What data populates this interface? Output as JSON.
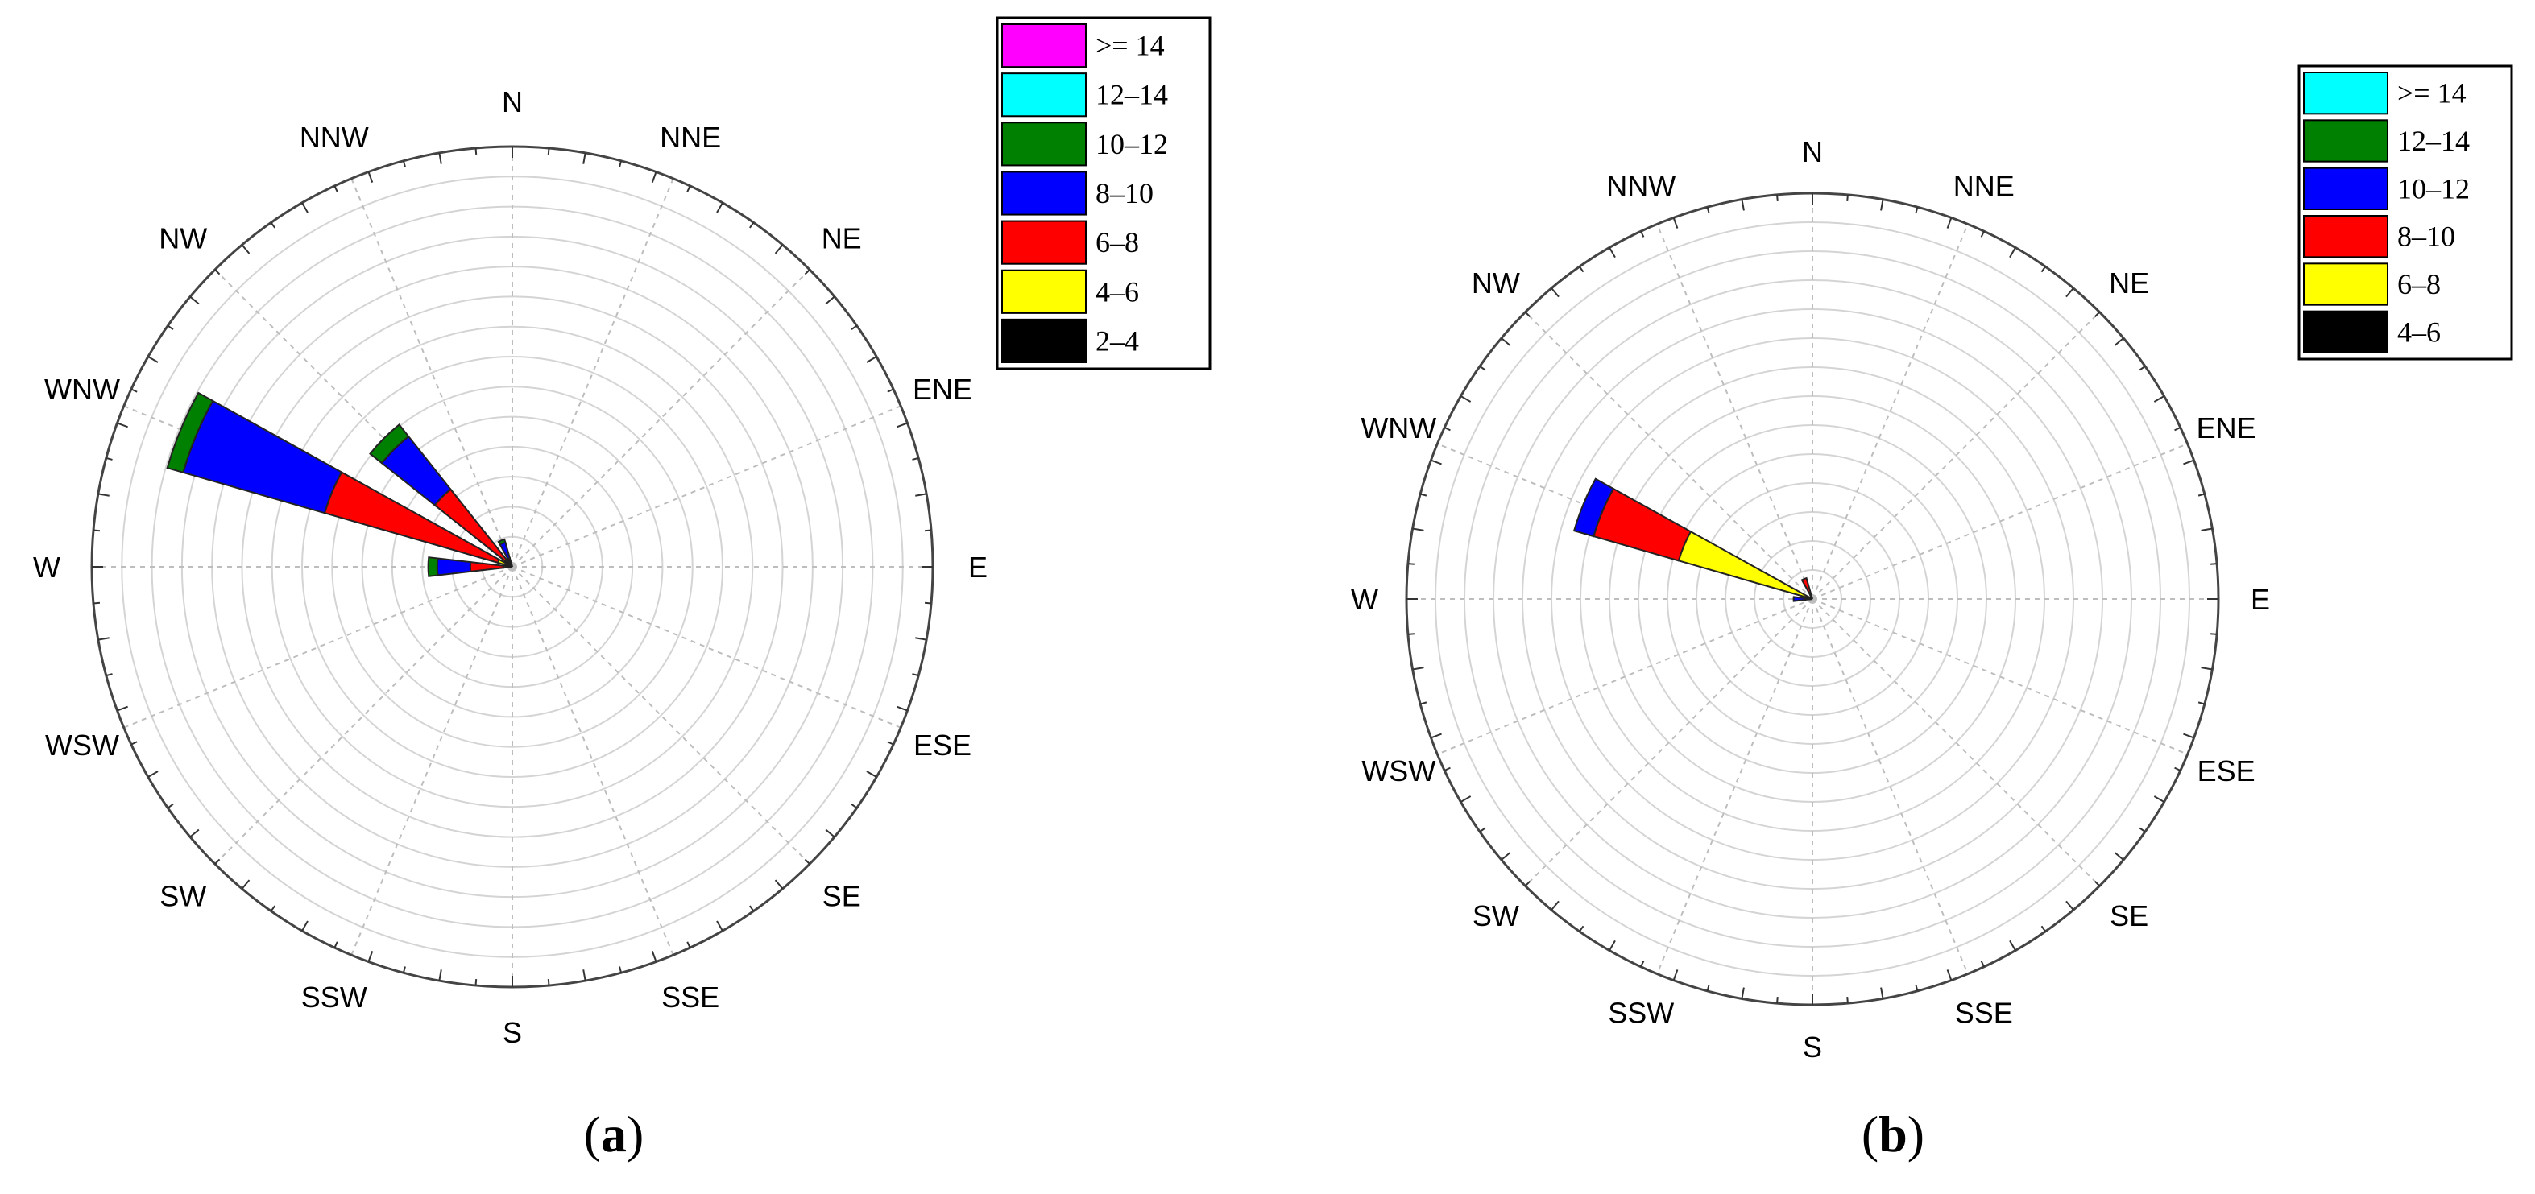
{
  "directions": [
    "N",
    "NNE",
    "NE",
    "ENE",
    "E",
    "ESE",
    "SE",
    "SSE",
    "S",
    "SSW",
    "SW",
    "WSW",
    "W",
    "WNW",
    "NW",
    "NNW"
  ],
  "chart_data": [
    {
      "type": "windrose",
      "caption": {
        "open": "(",
        "letter": "a",
        "close": ")"
      },
      "rlim": [
        0,
        28
      ],
      "ring_step": 2,
      "grid": true,
      "legend_placement": "top-right",
      "bins": [
        {
          "label": "2‒4",
          "color": "#000000"
        },
        {
          "label": "4‒6",
          "color": "#ffff00"
        },
        {
          "label": "6‒8",
          "color": "#ff0000"
        },
        {
          "label": "8‒10",
          "color": "#0000ff"
        },
        {
          "label": "10‒12",
          "color": "#008000"
        },
        {
          "label": "12‒14",
          "color": "#00ffff"
        },
        {
          "label": ">= 14",
          "color": "#ff00ff"
        }
      ],
      "legend_order": [
        ">= 14",
        "12‒14",
        "10‒12",
        "8‒10",
        "6‒8",
        "4‒6",
        "2‒4"
      ],
      "series": [
        {
          "direction": "NNW",
          "values": [
            0.1,
            0.2,
            0.3,
            1.1,
            0.2,
            0,
            0
          ]
        },
        {
          "direction": "NW",
          "values": [
            0.2,
            0.4,
            6.0,
            4.5,
            1.0,
            0,
            0
          ]
        },
        {
          "direction": "WNW",
          "values": [
            0.3,
            0.7,
            12.0,
            9.8,
            1.1,
            0,
            0
          ]
        },
        {
          "direction": "W",
          "values": [
            0.2,
            0.4,
            2.2,
            2.2,
            0.6,
            0,
            0
          ]
        }
      ]
    },
    {
      "type": "windrose",
      "caption": {
        "open": "(",
        "letter": "b",
        "close": ")"
      },
      "rlim": [
        0,
        28
      ],
      "ring_step": 2,
      "grid": true,
      "legend_placement": "top-right",
      "bins": [
        {
          "label": "4‒6",
          "color": "#000000"
        },
        {
          "label": "6‒8",
          "color": "#ffff00"
        },
        {
          "label": "8‒10",
          "color": "#ff0000"
        },
        {
          "label": "10‒12",
          "color": "#0000ff"
        },
        {
          "label": "12‒14",
          "color": "#008000"
        },
        {
          "label": ">= 14",
          "color": "#00ffff"
        }
      ],
      "legend_order": [
        ">= 14",
        "12‒14",
        "10‒12",
        "8‒10",
        "6‒8",
        "4‒6"
      ],
      "series": [
        {
          "direction": "NNW",
          "values": [
            0.1,
            0.2,
            1.2,
            0,
            0,
            0
          ]
        },
        {
          "direction": "WNW",
          "values": [
            0.1,
            9.5,
            6.1,
            1.4,
            0,
            0
          ]
        },
        {
          "direction": "W",
          "values": [
            0.1,
            0.1,
            0.3,
            0.8,
            0,
            0
          ]
        }
      ]
    }
  ]
}
